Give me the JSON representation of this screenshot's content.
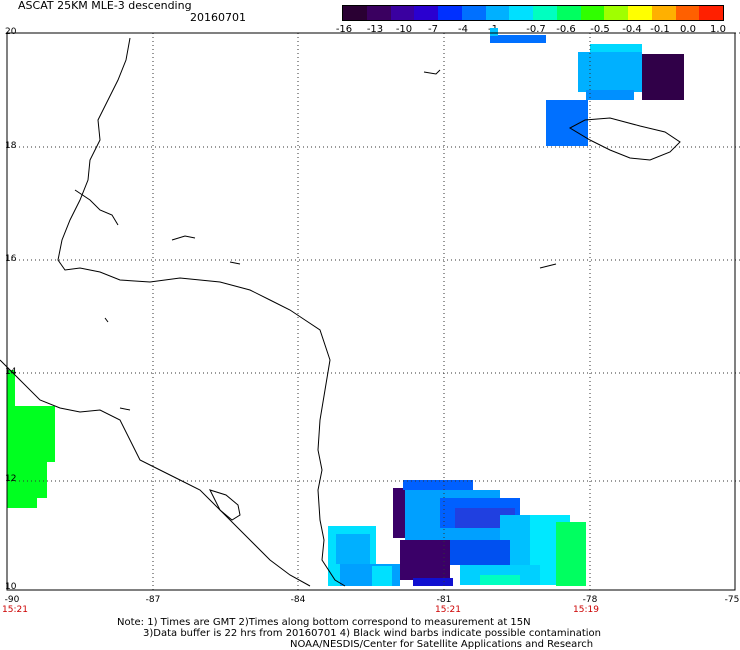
{
  "header": {
    "title": "ASCAT 25KM MLE-3 descending",
    "date": "20160701"
  },
  "colorbar": {
    "labels": [
      "-16",
      "-13",
      "-10",
      "-7",
      "-4",
      "-1",
      "-0.7",
      "-0.6",
      "-0.5",
      "-0.4",
      "-0.1",
      "0.0",
      "1.0"
    ],
    "colors": [
      "#2a0033",
      "#3a0060",
      "#3a00a0",
      "#2a00d0",
      "#0030ff",
      "#0070ff",
      "#00b0ff",
      "#00e0ff",
      "#00ffc0",
      "#00ff60",
      "#30ff00",
      "#a0ff00",
      "#ffff00",
      "#ffb000",
      "#ff6000",
      "#ff2000"
    ]
  },
  "axes": {
    "lat_labels": [
      "20",
      "18",
      "16",
      "14",
      "12",
      "10"
    ],
    "lon_labels": [
      "-90",
      "-87",
      "-84",
      "-81",
      "-78",
      "-75"
    ],
    "time_labels": [
      "15:21",
      "15:21",
      "15:19"
    ]
  },
  "notes": {
    "line1": "Note: 1) Times are GMT 2)Times along bottom correspond to measurement at 15N",
    "line2": "3)Data buffer is 22 hrs from 20160701 4) Black wind barbs indicate possible contamination",
    "line3": "NOAA/NESDIS/Center for Satellite Applications and Research"
  },
  "map_colors": {
    "land_outline": "#000000",
    "green_swath": "#00ff20",
    "dark_purple": "#330050",
    "blue": "#0060ff",
    "light_blue": "#00b0ff",
    "cyan": "#00e8ff"
  }
}
